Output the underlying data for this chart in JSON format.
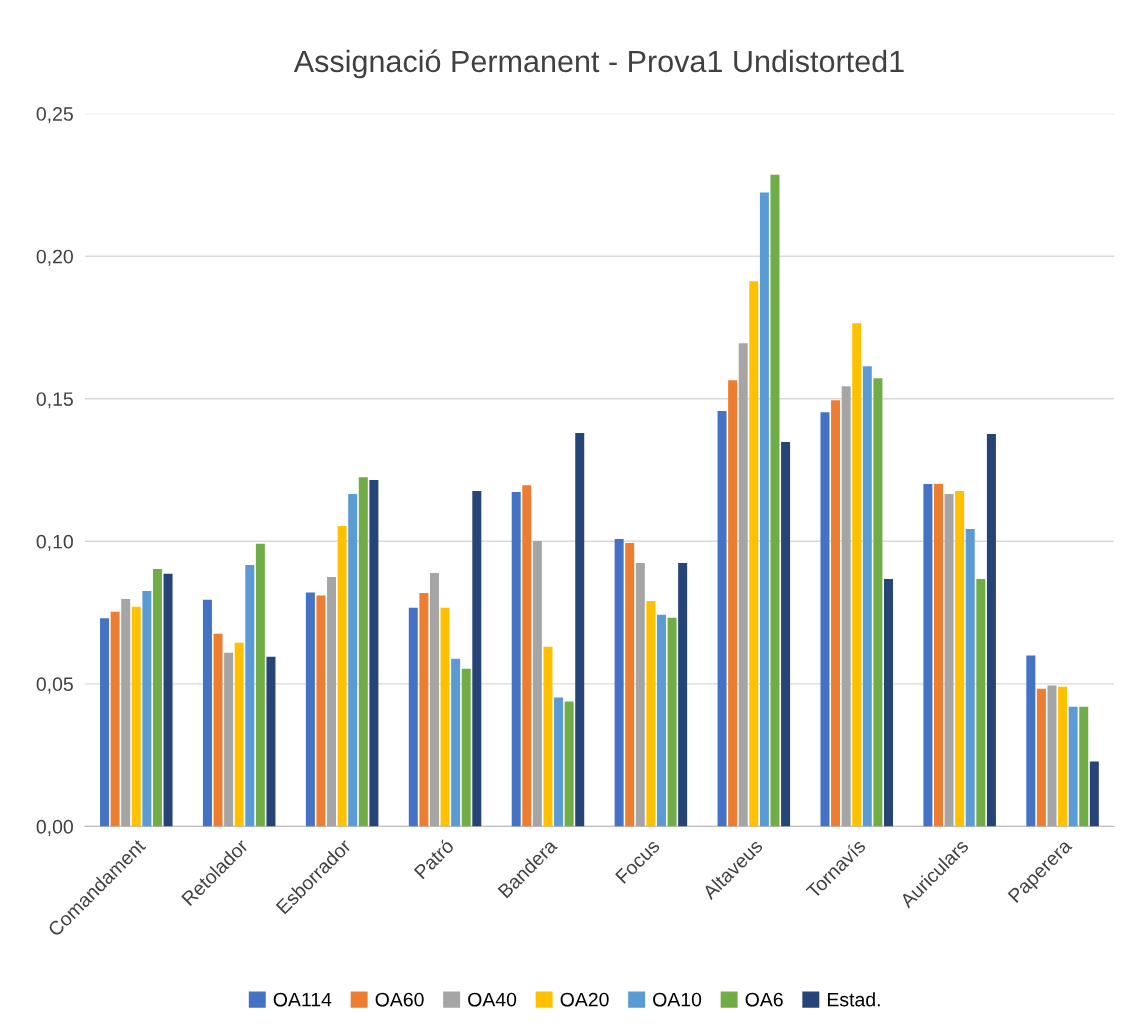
{
  "chart_data": {
    "type": "bar",
    "title": "Assignació Permanent - Prova1 Undistorted1",
    "categories": [
      "Comandament",
      "Retolador",
      "Esborrador",
      "Patró",
      "Bandera",
      "Focus",
      "Altaveus",
      "Tornavís",
      "Auriculars",
      "Paperera"
    ],
    "series": [
      {
        "name": "OA114",
        "color": "#4472c4",
        "values": [
          0.073,
          0.0795,
          0.082,
          0.0767,
          0.1173,
          0.1008,
          0.1457,
          0.1453,
          0.1201,
          0.0599
        ]
      },
      {
        "name": "OA60",
        "color": "#ed7d31",
        "values": [
          0.0753,
          0.0676,
          0.081,
          0.0819,
          0.1197,
          0.0994,
          0.1565,
          0.1495,
          0.1201,
          0.0483
        ]
      },
      {
        "name": "OA40",
        "color": "#a5a5a5",
        "values": [
          0.0798,
          0.0609,
          0.0875,
          0.0889,
          0.1001,
          0.0924,
          0.1695,
          0.1544,
          0.1166,
          0.0494
        ]
      },
      {
        "name": "OA20",
        "color": "#ffc000",
        "values": [
          0.077,
          0.0644,
          0.1054,
          0.0767,
          0.063,
          0.0791,
          0.1912,
          0.1765,
          0.1176,
          0.049
        ]
      },
      {
        "name": "OA10",
        "color": "#5b9bd5",
        "values": [
          0.0826,
          0.0917,
          0.1166,
          0.0588,
          0.0452,
          0.0742,
          0.2223,
          0.1614,
          0.1043,
          0.042
        ]
      },
      {
        "name": "OA6",
        "color": "#70ad47",
        "values": [
          0.0903,
          0.0991,
          0.1225,
          0.0553,
          0.0438,
          0.0732,
          0.2286,
          0.1572,
          0.0868,
          0.042
        ]
      },
      {
        "name": "Estad.",
        "color": "#264478",
        "values": [
          0.0886,
          0.0595,
          0.1215,
          0.1176,
          0.138,
          0.0924,
          0.1348,
          0.0868,
          0.1376,
          0.0228
        ]
      }
    ],
    "ylim": [
      0,
      0.25
    ],
    "yticks": [
      {
        "value": 0,
        "label": "0,00"
      },
      {
        "value": 0.05,
        "label": "0,05"
      },
      {
        "value": 0.1,
        "label": "0,10"
      },
      {
        "value": 0.15,
        "label": "0,15"
      },
      {
        "value": 0.2,
        "label": "0,20"
      },
      {
        "value": 0.25,
        "label": "0,25"
      }
    ],
    "grid": "y",
    "legend": "bottom"
  }
}
